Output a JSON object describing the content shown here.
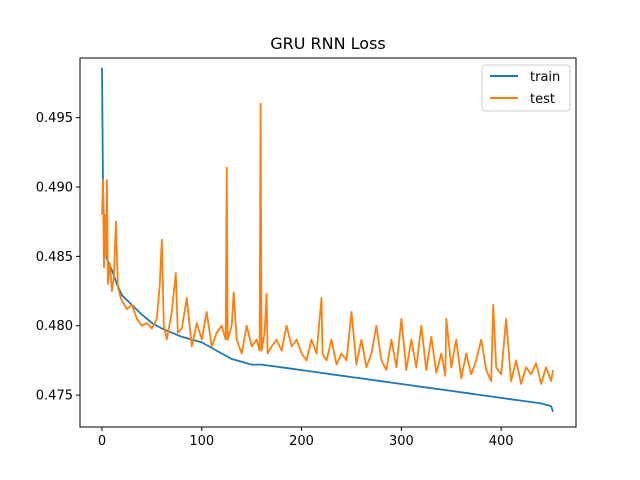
{
  "chart_data": {
    "type": "line",
    "title": "GRU RNN Loss",
    "xlabel": "",
    "ylabel": "",
    "xlim": [
      -22,
      475
    ],
    "ylim": [
      0.4727,
      0.4993
    ],
    "xticks": [
      0,
      100,
      200,
      300,
      400
    ],
    "yticks": [
      0.475,
      0.48,
      0.485,
      0.49,
      0.495
    ],
    "ytick_labels": [
      "0.475",
      "0.480",
      "0.485",
      "0.490",
      "0.495"
    ],
    "xtick_labels": [
      "0",
      "100",
      "200",
      "300",
      "400"
    ],
    "grid": false,
    "legend_position": "top-right",
    "series": [
      {
        "name": "train",
        "color": "#1f77b4",
        "x": [
          0,
          1,
          2,
          3,
          5,
          7,
          10,
          15,
          20,
          30,
          40,
          50,
          60,
          70,
          80,
          90,
          100,
          110,
          120,
          130,
          140,
          150,
          160,
          170,
          180,
          190,
          200,
          210,
          220,
          230,
          240,
          250,
          260,
          270,
          280,
          290,
          300,
          310,
          320,
          330,
          340,
          350,
          360,
          370,
          380,
          390,
          400,
          410,
          420,
          430,
          440,
          450,
          452
        ],
        "y": [
          0.4986,
          0.49,
          0.487,
          0.4855,
          0.4848,
          0.4845,
          0.484,
          0.483,
          0.4822,
          0.4815,
          0.4808,
          0.4802,
          0.4798,
          0.4795,
          0.4792,
          0.479,
          0.4788,
          0.4784,
          0.478,
          0.4776,
          0.4774,
          0.4772,
          0.4772,
          0.4771,
          0.477,
          0.4769,
          0.4768,
          0.4767,
          0.4766,
          0.4765,
          0.4764,
          0.4763,
          0.4762,
          0.4761,
          0.476,
          0.4759,
          0.4758,
          0.4757,
          0.4756,
          0.4755,
          0.4754,
          0.4753,
          0.4752,
          0.4751,
          0.475,
          0.4749,
          0.4748,
          0.4747,
          0.4746,
          0.4745,
          0.4744,
          0.4742,
          0.4738
        ]
      },
      {
        "name": "test",
        "color": "#ff7f0e",
        "x": [
          0,
          1,
          2,
          3,
          4,
          5,
          6,
          8,
          10,
          12,
          14,
          16,
          18,
          20,
          25,
          30,
          35,
          40,
          45,
          50,
          55,
          58,
          60,
          62,
          65,
          70,
          74,
          76,
          80,
          85,
          90,
          95,
          100,
          105,
          110,
          115,
          120,
          124,
          125,
          126,
          130,
          132,
          135,
          140,
          145,
          150,
          155,
          158,
          159,
          160,
          163,
          165,
          166,
          170,
          175,
          180,
          185,
          190,
          195,
          200,
          205,
          210,
          215,
          220,
          221,
          225,
          230,
          235,
          240,
          245,
          250,
          255,
          260,
          265,
          270,
          275,
          280,
          285,
          290,
          295,
          300,
          305,
          310,
          315,
          320,
          325,
          330,
          335,
          340,
          344,
          345,
          350,
          355,
          360,
          365,
          370,
          375,
          380,
          385,
          390,
          392,
          395,
          400,
          405,
          410,
          415,
          420,
          425,
          430,
          435,
          440,
          445,
          450,
          452
        ],
        "y": [
          0.488,
          0.4905,
          0.4842,
          0.488,
          0.485,
          0.4905,
          0.483,
          0.4845,
          0.4825,
          0.4835,
          0.4875,
          0.4828,
          0.4822,
          0.4818,
          0.4812,
          0.4815,
          0.4805,
          0.48,
          0.4802,
          0.4798,
          0.4805,
          0.483,
          0.4862,
          0.48,
          0.479,
          0.481,
          0.4838,
          0.4795,
          0.4798,
          0.482,
          0.4785,
          0.4802,
          0.479,
          0.481,
          0.4785,
          0.4795,
          0.48,
          0.479,
          0.4914,
          0.479,
          0.48,
          0.4824,
          0.479,
          0.478,
          0.48,
          0.4785,
          0.479,
          0.4782,
          0.496,
          0.4782,
          0.4795,
          0.4823,
          0.478,
          0.4785,
          0.479,
          0.4782,
          0.48,
          0.4785,
          0.479,
          0.478,
          0.4775,
          0.479,
          0.478,
          0.482,
          0.478,
          0.4775,
          0.479,
          0.4772,
          0.478,
          0.4775,
          0.481,
          0.4772,
          0.479,
          0.477,
          0.478,
          0.48,
          0.4775,
          0.4768,
          0.479,
          0.477,
          0.4805,
          0.4768,
          0.479,
          0.477,
          0.48,
          0.4768,
          0.4792,
          0.4766,
          0.478,
          0.4764,
          0.4805,
          0.477,
          0.479,
          0.4762,
          0.478,
          0.4765,
          0.4775,
          0.479,
          0.4768,
          0.476,
          0.4815,
          0.477,
          0.4765,
          0.4805,
          0.476,
          0.4775,
          0.4758,
          0.477,
          0.4765,
          0.4773,
          0.4758,
          0.477,
          0.476,
          0.4768
        ]
      }
    ]
  }
}
